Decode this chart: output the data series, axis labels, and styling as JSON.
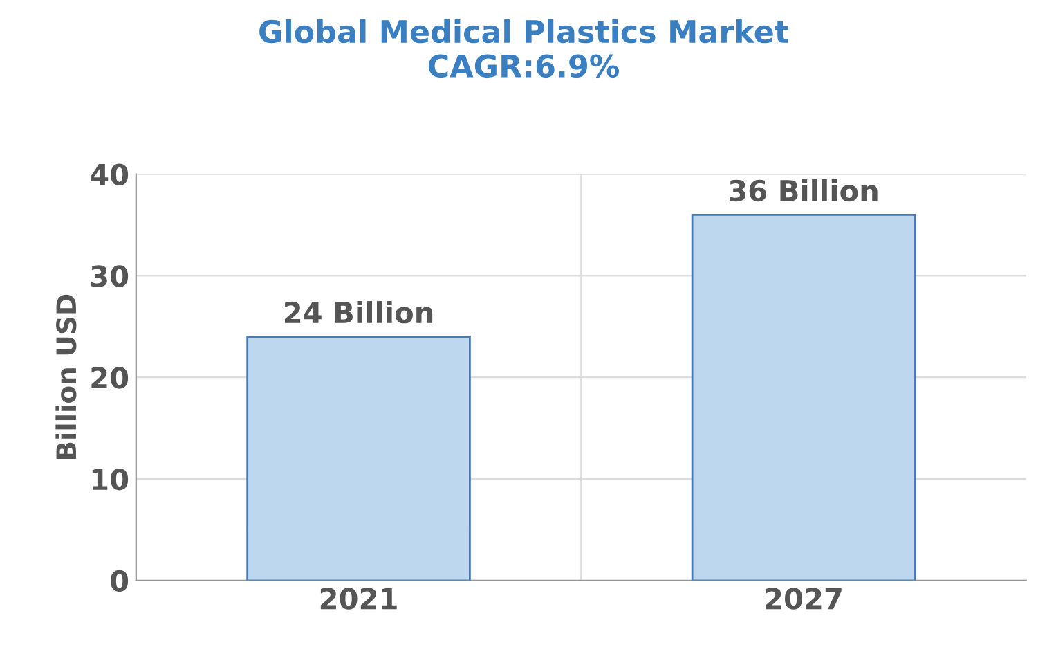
{
  "chart_data": {
    "type": "bar",
    "title": "Global Medical Plastics Market\nCAGR:6.9%",
    "ylabel": "Billion USD",
    "categories": [
      "2021",
      "2027"
    ],
    "values": [
      24,
      36
    ],
    "color": "#bdd7ee",
    "value_labels": [
      "24 Billion",
      "36 Billion"
    ],
    "ylim": [
      0,
      40
    ],
    "yticks": [
      0,
      10,
      20,
      30,
      40
    ],
    "grid": true
  }
}
